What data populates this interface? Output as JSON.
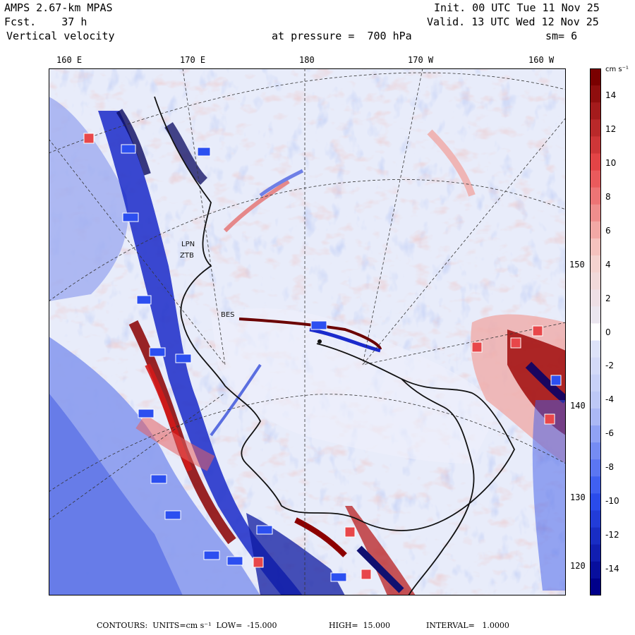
{
  "header": {
    "model": "AMPS 2.67-km MPAS",
    "fcst": "Fcst.    37 h",
    "field": "Vertical velocity",
    "init": "Init. 00 UTC Tue 11 Nov 25",
    "valid": "Valid. 13 UTC Wed 12 Nov 25",
    "level": "at pressure =  700 hPa",
    "smooth": "sm= 6"
  },
  "lon_labels": [
    "160 E",
    "170 E",
    "180",
    "170 W",
    "160 W"
  ],
  "lat_labels": [
    "150 W",
    "140 W",
    "130 W",
    "120 W"
  ],
  "stations": [
    "LPN",
    "ZTB",
    "BES"
  ],
  "colorbar": {
    "unit": "cm s⁻¹",
    "ticks": [
      "14",
      "12",
      "10",
      "8",
      "6",
      "4",
      "2",
      "0",
      "-2",
      "-4",
      "-6",
      "-8",
      "-10",
      "-12",
      "-14"
    ]
  },
  "footer": {
    "contours": "CONTOURS:  UNITS=cm s⁻¹  LOW=  -15.000",
    "high": "HIGH=  15.000",
    "interval": "INTERVAL=   1.0000"
  },
  "colors": {
    "neg_dark": "#00008a",
    "neg_mid": "#2c4ff0",
    "neg_light": "#b8c3f5",
    "neutral": "#e8ecfa",
    "pos_light": "#f6cfca",
    "pos_mid": "#e8474a",
    "pos_dark": "#7a0000"
  }
}
